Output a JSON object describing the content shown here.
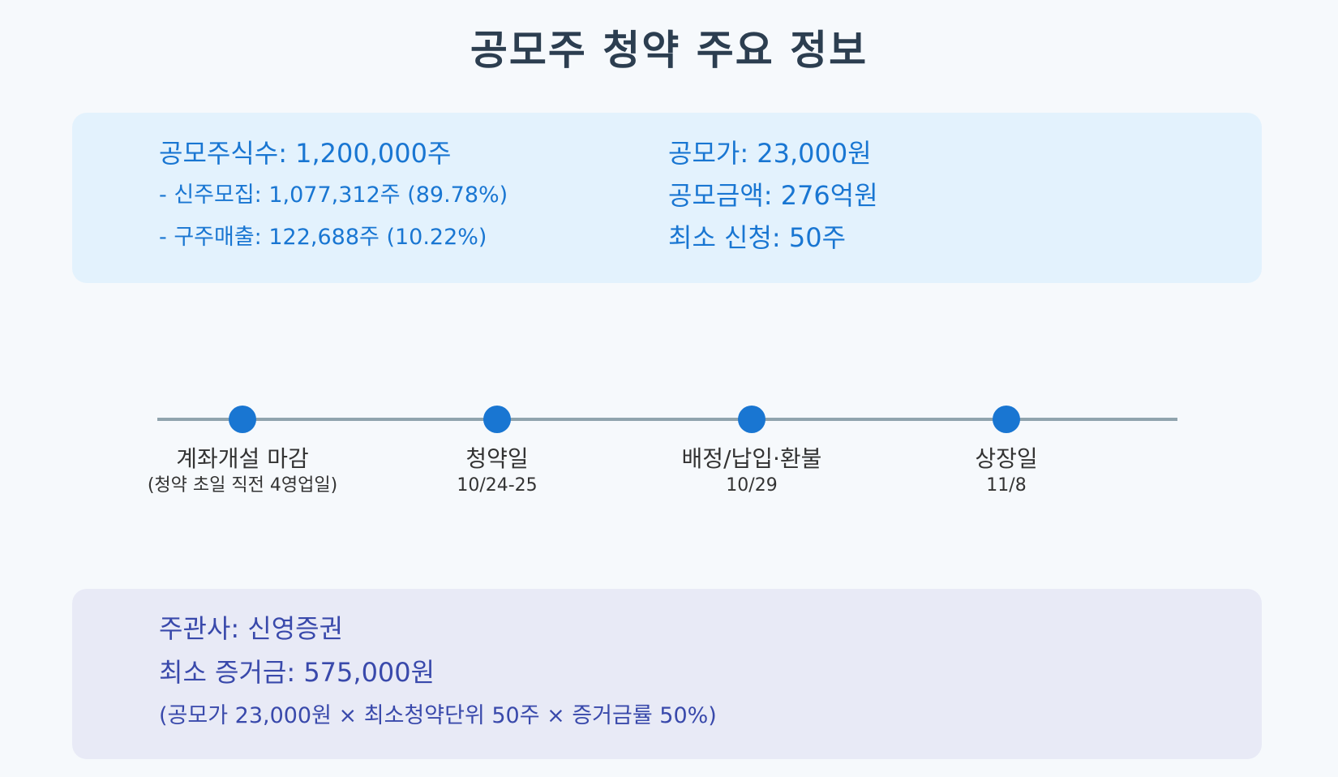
{
  "title": "공모주 청약 주요 정보",
  "offering": {
    "shares_total": "공모주식수: 1,200,000주",
    "new_shares": "- 신주모집: 1,077,312주 (89.78%)",
    "old_shares": "- 구주매출: 122,688주 (10.22%)",
    "price": "공모가: 23,000원",
    "amount": "공모금액: 276억원",
    "min_application": "최소 신청: 50주"
  },
  "timeline": [
    {
      "name": "계좌개설 마감",
      "date": "(청약 초일 직전 4영업일)"
    },
    {
      "name": "청약일",
      "date": "10/24-25"
    },
    {
      "name": "배정/납입·환불",
      "date": "10/29"
    },
    {
      "name": "상장일",
      "date": "11/8"
    }
  ],
  "underwriting": {
    "underwriter": "주관사: 신영증권",
    "min_deposit": "최소 증거금: 575,000원",
    "deposit_formula": "(공모가 23,000원 × 최소청약단위 50주 × 증거금률 50%)"
  },
  "colors": {
    "title": "#2c3e50",
    "top_panel_bg": "#e3f2fd",
    "top_panel_text": "#1976d2",
    "bottom_panel_bg": "#e8eaf6",
    "bottom_panel_text": "#3949ab",
    "timeline_axis": "#90a4ae",
    "timeline_dot": "#1976d2"
  }
}
